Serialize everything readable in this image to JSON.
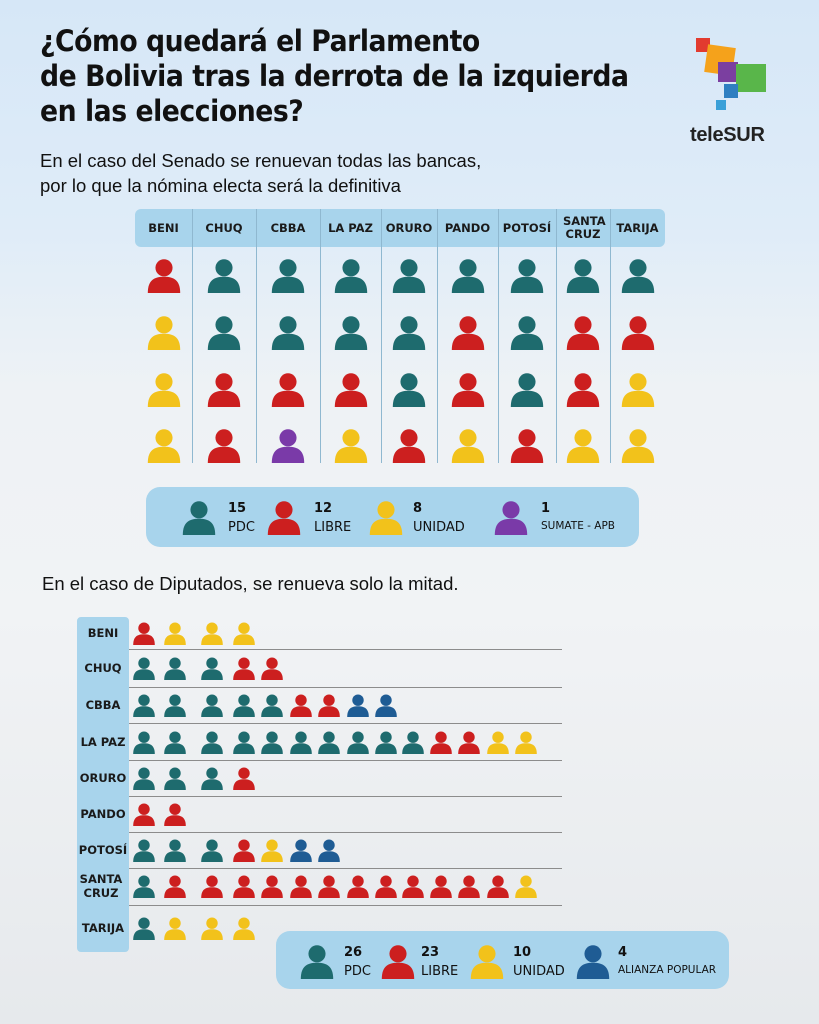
{
  "title_lines": [
    "¿Cómo quedará el Parlamento",
    "de Bolivia tras la derrota de la izquierda",
    "en las elecciones?"
  ],
  "subtitle_lines": [
    "En el caso del Senado se renuevan todas las bancas,",
    "por lo que la nómina electa será la definitiva"
  ],
  "logo": {
    "text_prefix": "tele",
    "text_suffix": "SUR",
    "icon": "telesur-logo"
  },
  "parties": {
    "PDC": {
      "color": "#1e6b6e"
    },
    "LIBRE": {
      "color": "#cc1f1f"
    },
    "UNIDAD": {
      "color": "#f2c21b"
    },
    "SUMATE": {
      "color": "#7a3aa8"
    },
    "AP": {
      "color": "#1f5c94"
    }
  },
  "senate": {
    "departments": [
      {
        "label": "BENI",
        "seats": [
          "LIBRE",
          "UNIDAD",
          "UNIDAD",
          "UNIDAD"
        ]
      },
      {
        "label": "CHUQ",
        "seats": [
          "PDC",
          "PDC",
          "LIBRE",
          "LIBRE"
        ]
      },
      {
        "label": "CBBA",
        "seats": [
          "PDC",
          "PDC",
          "LIBRE",
          "SUMATE"
        ]
      },
      {
        "label": "LA PAZ",
        "seats": [
          "PDC",
          "PDC",
          "LIBRE",
          "UNIDAD"
        ]
      },
      {
        "label": "ORURO",
        "seats": [
          "PDC",
          "PDC",
          "PDC",
          "LIBRE"
        ]
      },
      {
        "label": "PANDO",
        "seats": [
          "PDC",
          "LIBRE",
          "LIBRE",
          "UNIDAD"
        ]
      },
      {
        "label": "POTOSÍ",
        "seats": [
          "PDC",
          "PDC",
          "PDC",
          "LIBRE"
        ]
      },
      {
        "label": "SANTA CRUZ",
        "seats": [
          "PDC",
          "LIBRE",
          "LIBRE",
          "UNIDAD"
        ]
      },
      {
        "label": "TARIJA",
        "seats": [
          "PDC",
          "LIBRE",
          "UNIDAD",
          "UNIDAD"
        ]
      }
    ],
    "legend": [
      {
        "party": "PDC",
        "count": "15",
        "name": "PDC"
      },
      {
        "party": "LIBRE",
        "count": "12",
        "name": "LIBRE"
      },
      {
        "party": "UNIDAD",
        "count": "8",
        "name": "UNIDAD"
      },
      {
        "party": "SUMATE",
        "count": "1",
        "name": "SUMATE - APB"
      }
    ]
  },
  "deputies_intro": "En el caso de Diputados, se renueva solo la mitad.",
  "deputies": {
    "departments": [
      {
        "label": "BENI",
        "seats": [
          "LIBRE",
          "UNIDAD",
          "UNIDAD",
          "UNIDAD"
        ]
      },
      {
        "label": "CHUQ",
        "seats": [
          "PDC",
          "PDC",
          "PDC",
          "LIBRE",
          "LIBRE"
        ]
      },
      {
        "label": "CBBA",
        "seats": [
          "PDC",
          "PDC",
          "PDC",
          "PDC",
          "PDC",
          "LIBRE",
          "LIBRE",
          "AP",
          "AP"
        ]
      },
      {
        "label": "LA PAZ",
        "seats": [
          "PDC",
          "PDC",
          "PDC",
          "PDC",
          "PDC",
          "PDC",
          "PDC",
          "PDC",
          "PDC",
          "PDC",
          "LIBRE",
          "LIBRE",
          "UNIDAD",
          "UNIDAD"
        ]
      },
      {
        "label": "ORURO",
        "seats": [
          "PDC",
          "PDC",
          "PDC",
          "LIBRE"
        ]
      },
      {
        "label": "PANDO",
        "seats": [
          "LIBRE",
          "LIBRE"
        ]
      },
      {
        "label": "POTOSÍ",
        "seats": [
          "PDC",
          "PDC",
          "PDC",
          "LIBRE",
          "UNIDAD",
          "AP",
          "AP"
        ]
      },
      {
        "label": "SANTA CRUZ",
        "seats": [
          "PDC",
          "LIBRE",
          "LIBRE",
          "LIBRE",
          "LIBRE",
          "LIBRE",
          "LIBRE",
          "LIBRE",
          "LIBRE",
          "LIBRE",
          "LIBRE",
          "LIBRE",
          "LIBRE",
          "UNIDAD"
        ]
      },
      {
        "label": "TARIJA",
        "seats": [
          "PDC",
          "UNIDAD",
          "UNIDAD",
          "UNIDAD"
        ]
      }
    ],
    "legend": [
      {
        "party": "PDC",
        "count": "26",
        "name": "PDC"
      },
      {
        "party": "LIBRE",
        "count": "23",
        "name": "LIBRE"
      },
      {
        "party": "UNIDAD",
        "count": "10",
        "name": "UNIDAD"
      },
      {
        "party": "AP",
        "count": "4",
        "name": "ALIANZA POPULAR"
      }
    ]
  }
}
